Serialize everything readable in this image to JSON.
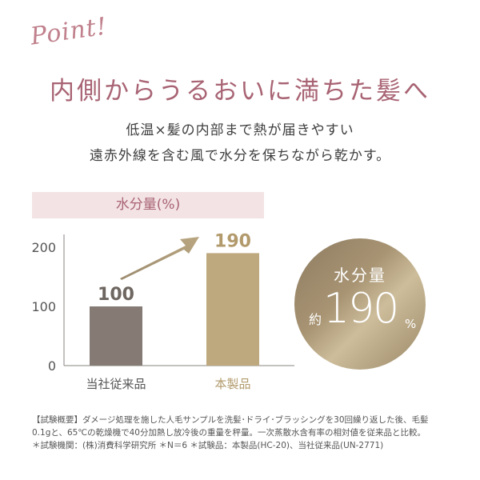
{
  "header": {
    "script_label": "Point!",
    "title": "内側からうるおいに満ちた髪へ",
    "subtitle_lines": [
      "低温×髪の内部まで熱が届きやすい",
      "遠赤外線を含む風で水分を保ちながら乾かす。"
    ]
  },
  "chart_data": {
    "type": "bar",
    "title": "水分量(%)",
    "categories": [
      "当社従来品",
      "本製品"
    ],
    "values": [
      100,
      190
    ],
    "data_labels": [
      "100",
      "190"
    ],
    "yticks": [
      "0",
      "100",
      "200"
    ],
    "ylim": [
      0,
      220
    ],
    "grid": false,
    "colors": [
      "#857b74",
      "#bea97f"
    ],
    "label_colors": [
      "#6e6660",
      "#b29a6c"
    ],
    "arrow_color": "#a8977a"
  },
  "badge": {
    "label": "水分量",
    "prefix": "約",
    "value": "190",
    "unit": "%"
  },
  "notes": [
    "【試験概要】ダメージ処理を施した人毛サンプルを洗髪･ドライ･ブラッシングを30回繰り返した後、毛髪",
    "0.1gと、65℃の乾燥機で40分加熱し放冷後の重量を秤量。一次蒸散水含有率の相対値を従来品と比較。",
    "＊試験機関：(株)消費科学研究所 ＊N＝6 ＊試験品：本製品(HC-20)、当社従来品(UN-2771)"
  ],
  "colors": {
    "accent": "#a86373",
    "band": "#f3e3e5",
    "gold": "#bea97f"
  }
}
